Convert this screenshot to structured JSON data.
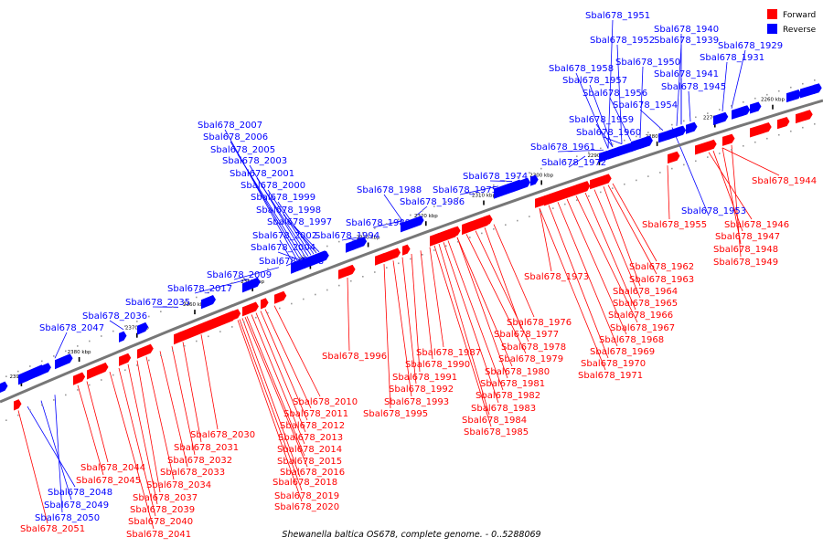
{
  "caption": "Shewanella baltica OS678, complete genome. - 0..5288069",
  "legend": {
    "forward": {
      "label": "Forward",
      "color": "#ff0000"
    },
    "reverse": {
      "label": "Reverse",
      "color": "#0000ff"
    }
  },
  "ticks": [
    "2260 kbp",
    "2270 kbp",
    "2280 kbp",
    "2290 kbp",
    "2300 kbp",
    "2310 kbp",
    "2320 kbp",
    "2330 kbp",
    "2340 kbp",
    "2350 kbp",
    "2360 kbp",
    "2370 kbp",
    "2380 kbp",
    "2390 kbp"
  ],
  "reverse_genes": [
    "Sbal678_1951",
    "Sbal678_1940",
    "Sbal678_1952",
    "Sbal678_1939",
    "Sbal678_1929",
    "Sbal678_1931",
    "Sbal678_1950",
    "Sbal678_1958",
    "Sbal678_1941",
    "Sbal678_1957",
    "Sbal678_1945",
    "Sbal678_1956",
    "Sbal678_1954",
    "Sbal678_1959",
    "Sbal678_1960",
    "Sbal678_1961",
    "Sbal678_1972",
    "Sbal678_1974",
    "Sbal678_1975",
    "Sbal678_1988",
    "Sbal678_1986",
    "Sbal678_1989",
    "Sbal678_1994",
    "Sbal678_2007",
    "Sbal678_2006",
    "Sbal678_2005",
    "Sbal678_2003",
    "Sbal678_2001",
    "Sbal678_2000",
    "Sbal678_1999",
    "Sbal678_1998",
    "Sbal678_1997",
    "Sbal678_2002",
    "Sbal678_2004",
    "Sbal678_2008",
    "Sbal678_2009",
    "Sbal678_2017",
    "Sbal678_2035",
    "Sbal678_2036",
    "Sbal678_2047",
    "Sbal678_1953",
    "Sbal678_2048",
    "Sbal678_2049",
    "Sbal678_2050"
  ],
  "forward_genes": [
    "Sbal678_1944",
    "Sbal678_1946",
    "Sbal678_1947",
    "Sbal678_1948",
    "Sbal678_1949",
    "Sbal678_1955",
    "Sbal678_1962",
    "Sbal678_1963",
    "Sbal678_1964",
    "Sbal678_1965",
    "Sbal678_1966",
    "Sbal678_1967",
    "Sbal678_1968",
    "Sbal678_1969",
    "Sbal678_1970",
    "Sbal678_1971",
    "Sbal678_1973",
    "Sbal678_1976",
    "Sbal678_1977",
    "Sbal678_1978",
    "Sbal678_1979",
    "Sbal678_1980",
    "Sbal678_1981",
    "Sbal678_1982",
    "Sbal678_1983",
    "Sbal678_1984",
    "Sbal678_1985",
    "Sbal678_1987",
    "Sbal678_1990",
    "Sbal678_1991",
    "Sbal678_1992",
    "Sbal678_1993",
    "Sbal678_1995",
    "Sbal678_1996",
    "Sbal678_2010",
    "Sbal678_2011",
    "Sbal678_2012",
    "Sbal678_2013",
    "Sbal678_2014",
    "Sbal678_2015",
    "Sbal678_2016",
    "Sbal678_2018",
    "Sbal678_2019",
    "Sbal678_2020",
    "Sbal678_2030",
    "Sbal678_2031",
    "Sbal678_2032",
    "Sbal678_2033",
    "Sbal678_2034",
    "Sbal678_2037",
    "Sbal678_2039",
    "Sbal678_2040",
    "Sbal678_2041",
    "Sbal678_2044",
    "Sbal678_2045",
    "Sbal678_2051"
  ]
}
